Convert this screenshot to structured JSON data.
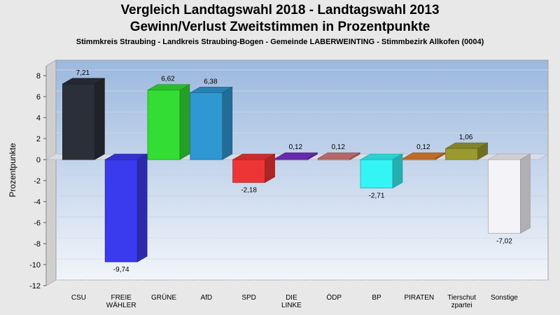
{
  "chart_data": {
    "type": "bar",
    "title": "Vergleich Landtagswahl 2018 - Landtagswahl 2013",
    "subtitle": "Gewinn/Verlust Zweitstimmen in Prozentpunkte",
    "subtitle2": "Stimmkreis Straubing - Landkreis Straubing-Bogen - Gemeinde LABERWEINTING - Stimmbezirk Allkofen (0004)",
    "ylabel": "Prozentpunkte",
    "xlabel": "",
    "ylim": [
      -12,
      9
    ],
    "yticks": [
      8,
      6,
      4,
      2,
      0,
      -2,
      -4,
      -6,
      -8,
      -10,
      -12
    ],
    "grid": true,
    "categories": [
      [
        "CSU"
      ],
      [
        "FREIE",
        "WÄHLER"
      ],
      [
        "GRÜNE"
      ],
      [
        "AfD"
      ],
      [
        "SPD"
      ],
      [
        "DIE",
        "LINKE"
      ],
      [
        "ÖDP"
      ],
      [
        "BP"
      ],
      [
        "PIRATEN"
      ],
      [
        "Tierschut",
        "zpartei"
      ],
      [
        "Sonstige"
      ]
    ],
    "values": [
      7.21,
      -9.74,
      6.62,
      6.38,
      -2.18,
      0.12,
      0.12,
      -2.71,
      0.12,
      1.06,
      -7.02
    ],
    "value_labels": [
      "7,21",
      "-9,74",
      "6,62",
      "6,38",
      "-2,18",
      "0,12",
      "0,12",
      "-2,71",
      "0,12",
      "1,06",
      "-7,02"
    ],
    "colors": [
      "#2b2f38",
      "#3a3aee",
      "#33dd33",
      "#2f98d2",
      "#ee3535",
      "#7a33cc",
      "#d47a7a",
      "#33f5f5",
      "#e08030",
      "#9a9a30",
      "#f4f4f8"
    ]
  }
}
